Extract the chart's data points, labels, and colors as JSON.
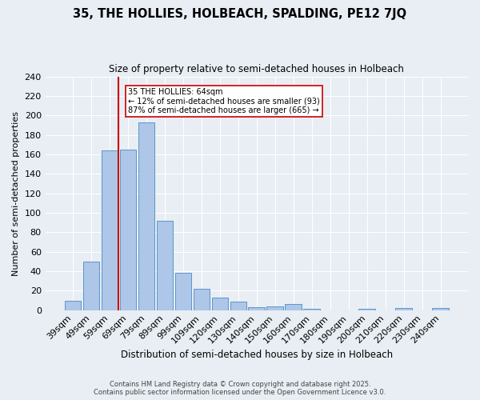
{
  "title1": "35, THE HOLLIES, HOLBEACH, SPALDING, PE12 7JQ",
  "title2": "Size of property relative to semi-detached houses in Holbeach",
  "xlabel": "Distribution of semi-detached houses by size in Holbeach",
  "ylabel": "Number of semi-detached properties",
  "categories": [
    "39sqm",
    "49sqm",
    "59sqm",
    "69sqm",
    "79sqm",
    "89sqm",
    "99sqm",
    "109sqm",
    "120sqm",
    "130sqm",
    "140sqm",
    "150sqm",
    "160sqm",
    "170sqm",
    "180sqm",
    "190sqm",
    "200sqm",
    "210sqm",
    "220sqm",
    "230sqm",
    "240sqm"
  ],
  "values": [
    10,
    50,
    164,
    165,
    193,
    92,
    38,
    22,
    13,
    9,
    3,
    4,
    6,
    1,
    0,
    0,
    1,
    0,
    2,
    0,
    2
  ],
  "bar_color": "#aec6e8",
  "bar_edge_color": "#5a96c8",
  "bg_color": "#e8eef4",
  "grid_color": "#ffffff",
  "red_line_index": 2.5,
  "annotation_title": "35 THE HOLLIES: 64sqm",
  "annotation_line1": "← 12% of semi-detached houses are smaller (93)",
  "annotation_line2": "87% of semi-detached houses are larger (665) →",
  "annotation_box_color": "#ffffff",
  "annotation_border_color": "#cc0000",
  "footer1": "Contains HM Land Registry data © Crown copyright and database right 2025.",
  "footer2": "Contains public sector information licensed under the Open Government Licence v3.0.",
  "ylim": [
    0,
    240
  ],
  "yticks": [
    0,
    20,
    40,
    60,
    80,
    100,
    120,
    140,
    160,
    180,
    200,
    220,
    240
  ]
}
